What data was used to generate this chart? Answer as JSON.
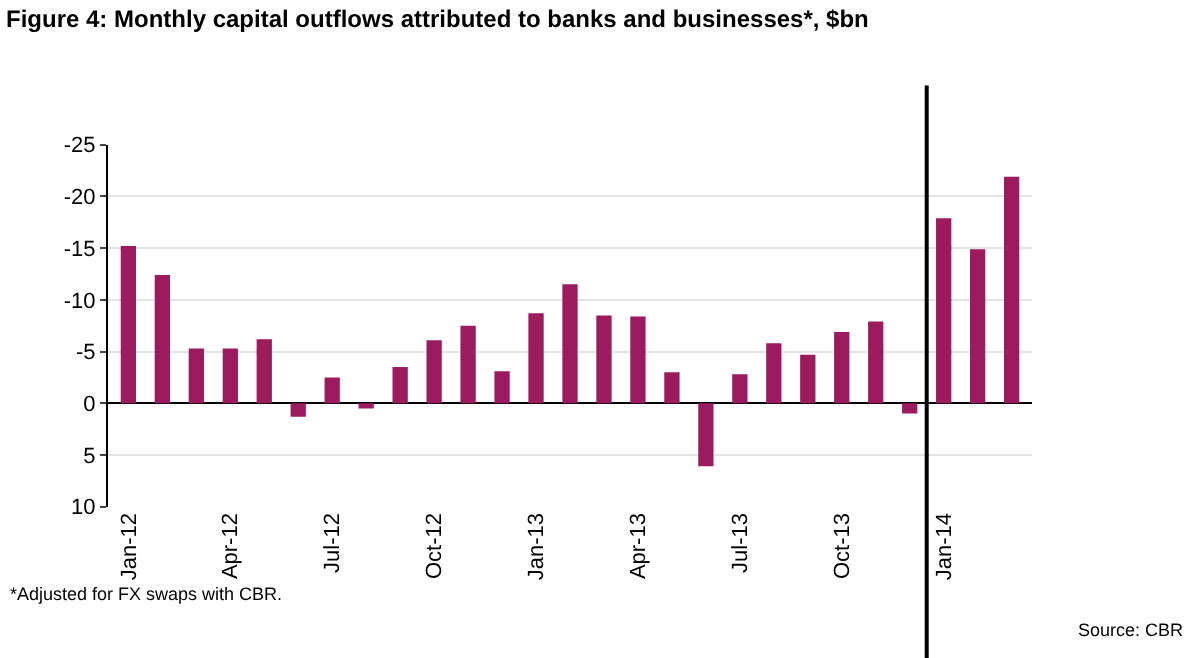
{
  "chart_data": {
    "type": "bar",
    "title": "Figure 4: Monthly capital outflows attributed to banks and businesses*, $bn",
    "categories": [
      "Jan-12",
      null,
      null,
      "Apr-12",
      null,
      null,
      "Jul-12",
      null,
      null,
      "Oct-12",
      null,
      null,
      "Jan-13",
      null,
      null,
      "Apr-13",
      null,
      null,
      "Jul-13",
      null,
      null,
      "Oct-13",
      null,
      null,
      "Jan-14",
      null,
      null
    ],
    "values": [
      -15.2,
      -12.4,
      -5.3,
      -5.3,
      -6.2,
      1.3,
      -2.5,
      0.5,
      -3.5,
      -6.1,
      -7.5,
      -3.1,
      -8.7,
      -11.5,
      -8.5,
      -8.4,
      -3.0,
      6.1,
      -2.8,
      -5.8,
      -4.7,
      -6.9,
      -7.9,
      1.0,
      -17.9,
      -14.9,
      -21.9
    ],
    "color": "#9b1b5e",
    "ylim": [
      10,
      -25
    ],
    "yticks": [
      -25,
      -20,
      -15,
      -10,
      -5,
      0,
      5,
      10
    ],
    "grid": "y",
    "ref_lines": [
      {
        "axis": "x",
        "value": "Jan-14",
        "color": "#000000"
      }
    ],
    "annotations": [
      "*Adjusted for FX swaps with CBR.",
      "Source: CBR"
    ]
  }
}
